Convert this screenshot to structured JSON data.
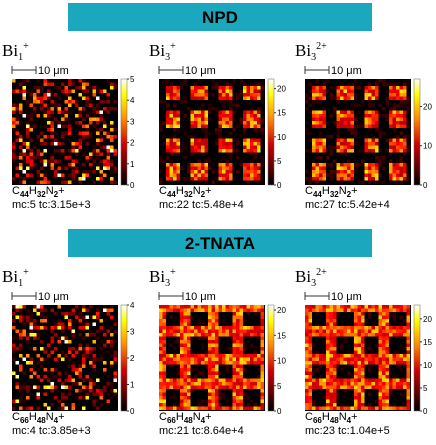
{
  "sections": [
    {
      "title": "NPD",
      "panels": [
        {
          "ion": {
            "element": "Bi",
            "subscript": "1",
            "superscript": "+"
          },
          "scale_bar": "10 μm",
          "clim": [
            0,
            5
          ],
          "ticks": [
            0,
            1,
            2,
            3,
            4,
            5
          ],
          "formula": [
            [
              "C",
              "44"
            ],
            [
              "H",
              "32"
            ],
            [
              "N",
              "2"
            ]
          ],
          "charge": "+",
          "counts": "mc:5 tc:3.15e+3"
        },
        {
          "ion": {
            "element": "Bi",
            "subscript": "3",
            "superscript": "+"
          },
          "scale_bar": "10 μm",
          "clim": [
            0,
            22
          ],
          "ticks": [
            0,
            5,
            10,
            15,
            20
          ],
          "formula": [
            [
              "C",
              "44"
            ],
            [
              "H",
              "32"
            ],
            [
              "N",
              "2"
            ]
          ],
          "charge": "+",
          "counts": "mc:22 tc:5.48e+4"
        },
        {
          "ion": {
            "element": "Bi",
            "subscript": "3",
            "superscript": "2+"
          },
          "scale_bar": "10 μm",
          "clim": [
            0,
            27
          ],
          "ticks": [
            0,
            10,
            20
          ],
          "formula": [
            [
              "C",
              "44"
            ],
            [
              "H",
              "32"
            ],
            [
              "N",
              "2"
            ]
          ],
          "charge": "+",
          "counts": "mc:27 tc:5.42e+4"
        }
      ]
    },
    {
      "title": "2-TNATA",
      "panels": [
        {
          "ion": {
            "element": "Bi",
            "subscript": "1",
            "superscript": "+"
          },
          "scale_bar": "10 μm",
          "clim": [
            0,
            4
          ],
          "ticks": [
            0,
            1,
            2,
            3,
            4
          ],
          "formula": [
            [
              "C",
              "66"
            ],
            [
              "H",
              "48"
            ],
            [
              "N",
              "4"
            ]
          ],
          "charge": "+",
          "counts": "mc:4 tc:3.85e+3"
        },
        {
          "ion": {
            "element": "Bi",
            "subscript": "3",
            "superscript": "+"
          },
          "scale_bar": "10 μm",
          "clim": [
            0,
            21
          ],
          "ticks": [
            0,
            5,
            10,
            15,
            20
          ],
          "formula": [
            [
              "C",
              "66"
            ],
            [
              "H",
              "48"
            ],
            [
              "N",
              "4"
            ]
          ],
          "charge": "+",
          "counts": "mc:21 tc:8.64e+4"
        },
        {
          "ion": {
            "element": "Bi",
            "subscript": "3",
            "superscript": "2+"
          },
          "scale_bar": "10 μm",
          "clim": [
            0,
            23
          ],
          "ticks": [
            0,
            5,
            10,
            15,
            20
          ],
          "formula": [
            [
              "C",
              "66"
            ],
            [
              "H",
              "48"
            ],
            [
              "N",
              "4"
            ]
          ],
          "charge": "+",
          "counts": "mc:23 tc:1.04e+5"
        }
      ]
    }
  ]
}
